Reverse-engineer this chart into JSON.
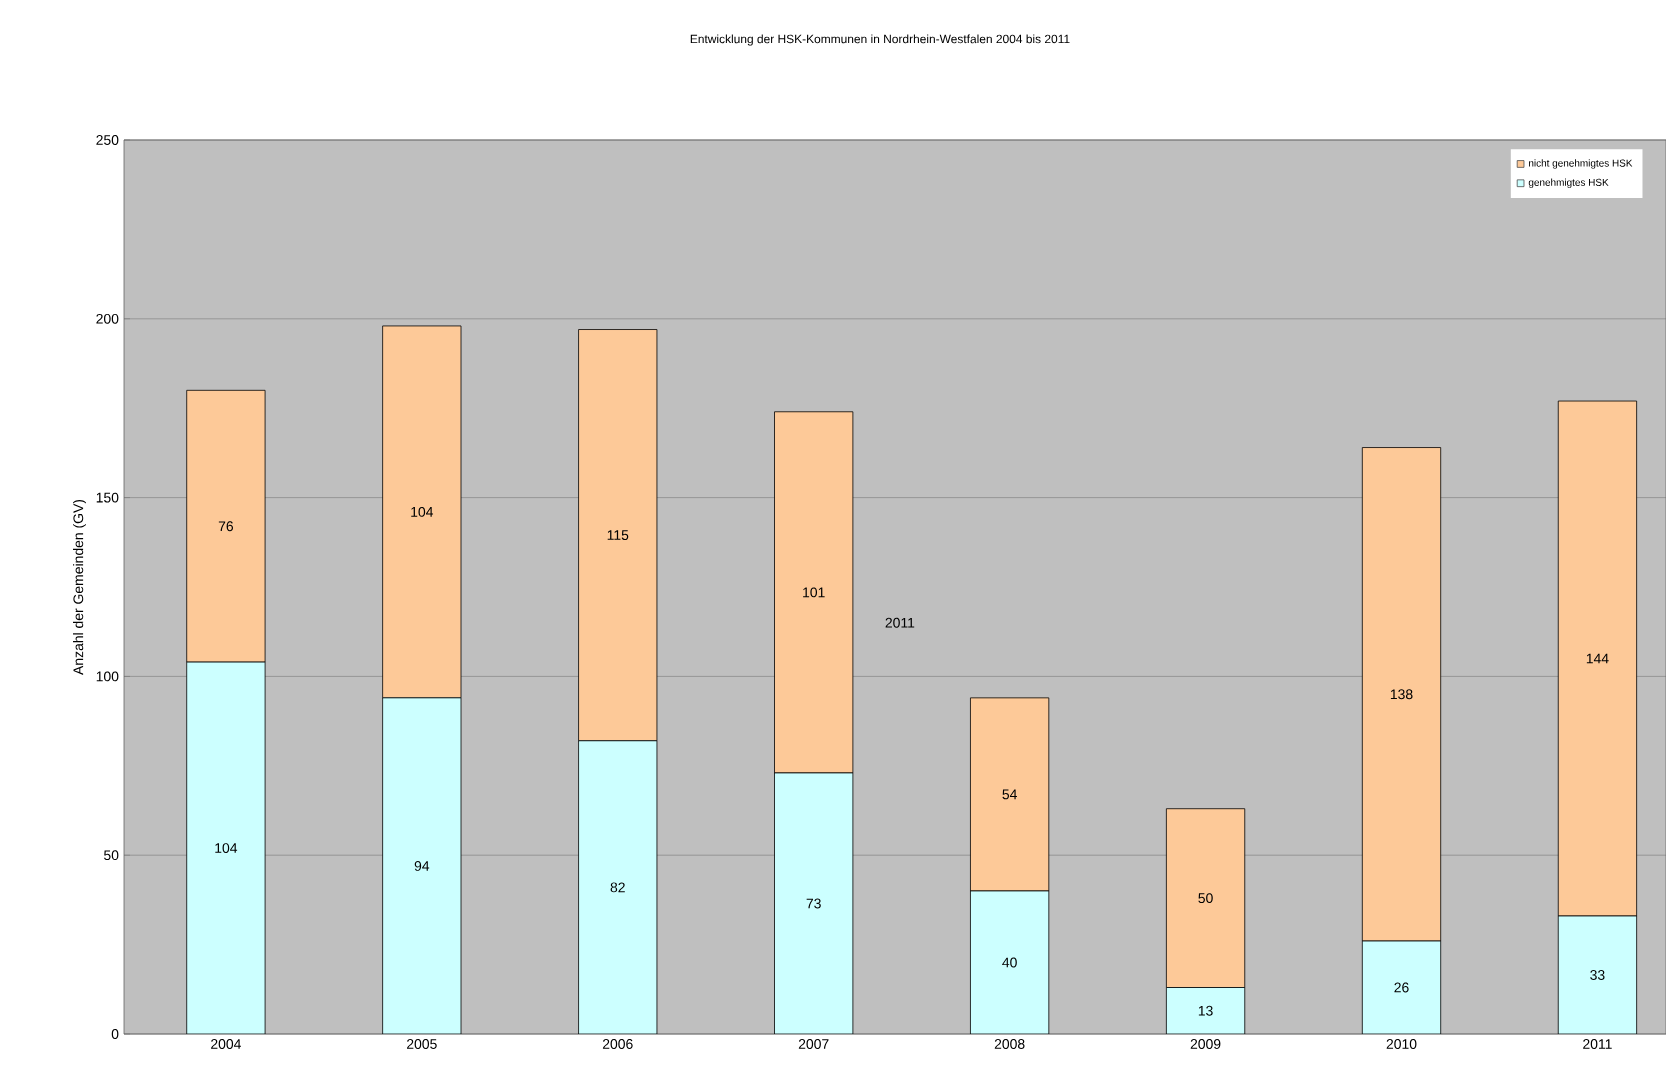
{
  "chart_data": {
    "type": "bar",
    "stacked": true,
    "title": "Entwicklung der HSK-Kommunen in Nordrhein-Westfalen 2004 bis 2011",
    "ylabel": "Anzahl der Gemeinden (GV)",
    "categories": [
      "2004",
      "2005",
      "2006",
      "2007",
      "2008",
      "2009",
      "2010",
      "2011"
    ],
    "series": [
      {
        "name": "genehmigtes HSK",
        "color": "#ccffff",
        "values": [
          104,
          94,
          82,
          73,
          40,
          13,
          26,
          33
        ]
      },
      {
        "name": "nicht genehmigtes HSK",
        "color": "#fdc998",
        "values": [
          76,
          104,
          115,
          101,
          54,
          50,
          138,
          144
        ]
      }
    ],
    "ylim": [
      0,
      250
    ],
    "yticks": [
      0,
      50,
      100,
      150,
      200,
      250
    ],
    "grid": "y",
    "legend": "top right",
    "data_labels": true,
    "annotations": [
      "2011"
    ]
  }
}
